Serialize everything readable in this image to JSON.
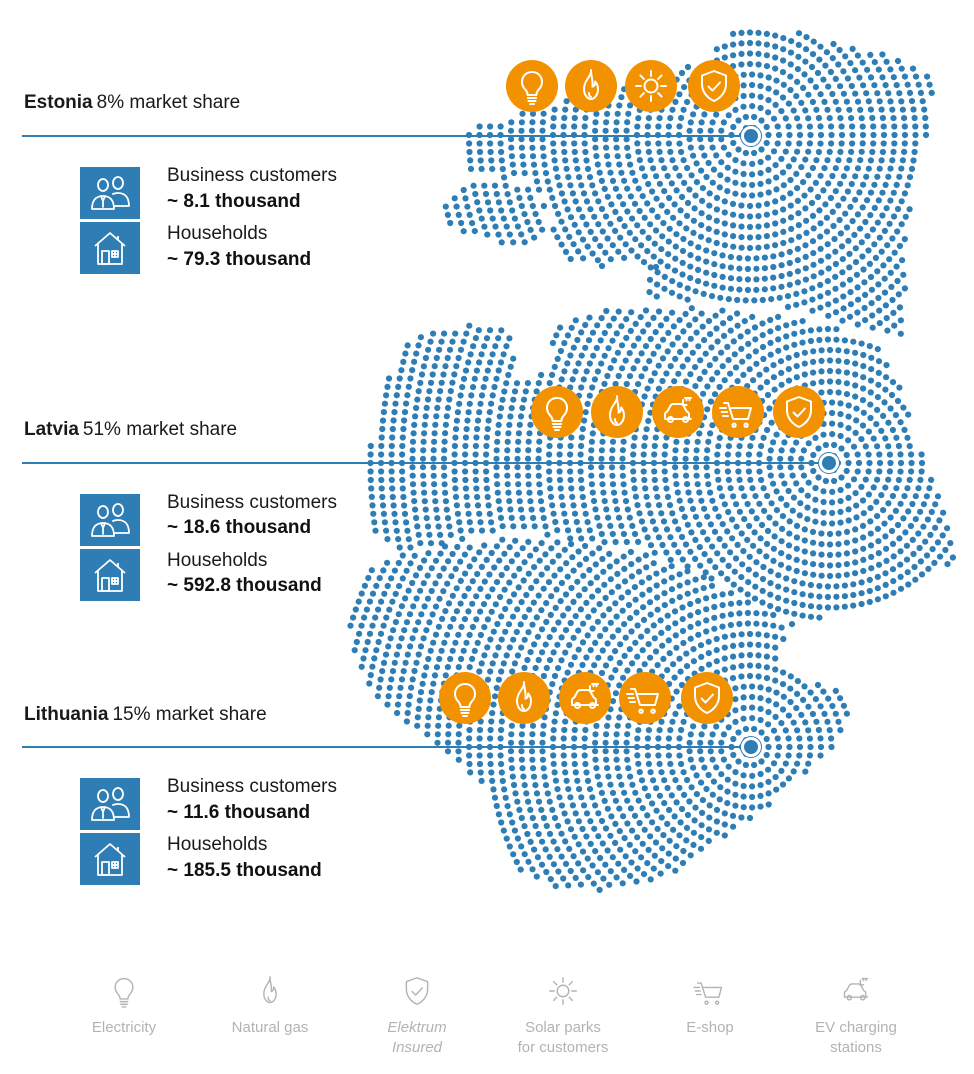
{
  "countries": [
    {
      "name": "Estonia",
      "share": "8% market share",
      "business_label": "Business customers",
      "business_value": "~ 8.1 thousand",
      "households_label": "Households",
      "households_value": "~ 79.3 thousand",
      "services": [
        "bulb-icon",
        "flame-icon",
        "sun-icon",
        "shield-icon"
      ]
    },
    {
      "name": "Latvia",
      "share": "51% market share",
      "business_label": "Business customers",
      "business_value": "~ 18.6 thousand",
      "households_label": "Households",
      "households_value": "~ 592.8 thousand",
      "services": [
        "bulb-icon",
        "flame-icon",
        "ev-car-icon",
        "cart-icon",
        "shield-icon"
      ]
    },
    {
      "name": "Lithuania",
      "share": "15% market share",
      "business_label": "Business customers",
      "business_value": "~ 11.6 thousand",
      "households_label": "Households",
      "households_value": "~ 185.5 thousand",
      "services": [
        "bulb-icon",
        "flame-icon",
        "ev-car-icon",
        "cart-icon",
        "shield-icon"
      ]
    }
  ],
  "legend": [
    {
      "icon": "bulb-icon",
      "line1": "Electricity",
      "line2": ""
    },
    {
      "icon": "flame-icon",
      "line1": "Natural gas",
      "line2": ""
    },
    {
      "icon": "shield-icon",
      "line1": "Elektrum",
      "line2": "Insured"
    },
    {
      "icon": "sun-icon",
      "line1": "Solar parks",
      "line2": "for customers"
    },
    {
      "icon": "cart-icon",
      "line1": "E-shop",
      "line2": ""
    },
    {
      "icon": "ev-car-icon",
      "line1": "EV charging",
      "line2": "stations"
    }
  ],
  "colors": {
    "map_blue": "#2e7db5",
    "service_orange": "#f39200",
    "legend_gray": "#b3b3b3"
  }
}
